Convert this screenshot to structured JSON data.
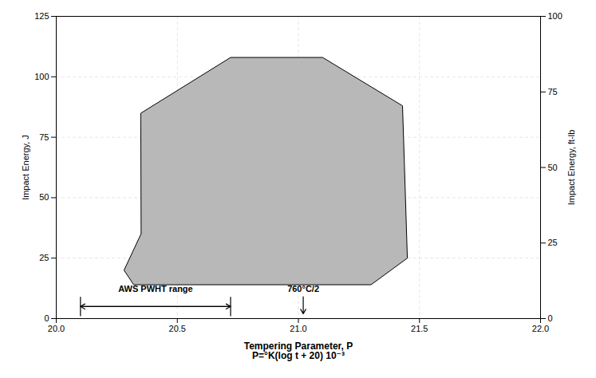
{
  "chart_data": {
    "type": "polygon",
    "x": [
      20.35,
      20.28,
      20.32,
      20.55,
      20.95,
      21.3,
      21.45,
      21.43,
      21.1,
      20.72,
      20.35
    ],
    "y": [
      35,
      20,
      14,
      14,
      14,
      14,
      25,
      88,
      108,
      108,
      85
    ],
    "color": "#b8b8b8",
    "xlabel": [
      "Tempering Parameter, P",
      "P=°K(log t + 20) 10⁻³"
    ],
    "ylabel": "Impact Energy, J",
    "y2label": "Impact Energy, ft-lb",
    "xlim": [
      20,
      22
    ],
    "xticks": [
      20,
      20.5,
      21,
      21.5,
      22
    ],
    "ylim": [
      0,
      125
    ],
    "yticks": [
      0,
      25,
      50,
      75,
      100,
      125
    ],
    "y2lim": [
      0,
      100
    ],
    "y2ticks": [
      0,
      25,
      50,
      75,
      100
    ],
    "grid": true,
    "annotations": [
      {
        "text": "AWS PWHT range",
        "x": 20.41,
        "y": 11,
        "range": {
          "x": [
            20.1,
            20.72
          ],
          "y": 5,
          "tick_y": [
            1,
            9
          ]
        }
      },
      {
        "text": "760°C/2",
        "x": 21.02,
        "y": 11,
        "arrow": {
          "x": 21.02,
          "y": [
            9,
            2
          ]
        }
      }
    ]
  }
}
